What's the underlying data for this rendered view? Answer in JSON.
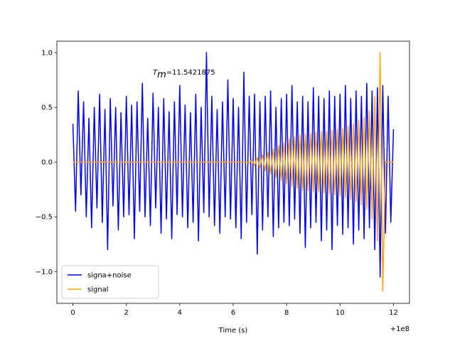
{
  "chart_data": {
    "type": "line",
    "annotation": [
      "T",
      "m",
      "=11.5421875"
    ],
    "x_label": "Time (s)",
    "x_offset_label": "+1e8",
    "xlim": [
      -0.6,
      12.6
    ],
    "ylim": [
      -1.29,
      1.104
    ],
    "xticks": [
      0,
      2,
      4,
      6,
      8,
      10,
      12
    ],
    "yticks": [
      {
        "value": -1.0,
        "label": "−1.0"
      },
      {
        "value": -0.5,
        "label": "−0.5"
      },
      {
        "value": 0.0,
        "label": "0.0"
      },
      {
        "value": 0.5,
        "label": "0.5"
      },
      {
        "value": 1.0,
        "label": "1.0"
      }
    ],
    "legend": "lower left",
    "series": [
      {
        "name": "signa+noise",
        "color": "#0000ff",
        "x": [
          0,
          0.1,
          0.2,
          0.3,
          0.4,
          0.5,
          0.6,
          0.7,
          0.8,
          0.9,
          1,
          1.1,
          1.2,
          1.3,
          1.4,
          1.5,
          1.6,
          1.7,
          1.8,
          1.9,
          2,
          2.1,
          2.2,
          2.3,
          2.4,
          2.5,
          2.6,
          2.7,
          2.8,
          2.9,
          3,
          3.1,
          3.2,
          3.3,
          3.4,
          3.5,
          3.6,
          3.7,
          3.8,
          3.9,
          4,
          4.1,
          4.2,
          4.3,
          4.4,
          4.5,
          4.6,
          4.7,
          4.8,
          4.9,
          5,
          5.1,
          5.2,
          5.3,
          5.4,
          5.5,
          5.6,
          5.7,
          5.8,
          5.9,
          6,
          6.1,
          6.2,
          6.3,
          6.4,
          6.5,
          6.6,
          6.7,
          6.8,
          6.9,
          7,
          7.1,
          7.2,
          7.3,
          7.4,
          7.5,
          7.6,
          7.7,
          7.8,
          7.9,
          8,
          8.1,
          8.2,
          8.3,
          8.4,
          8.5,
          8.6,
          8.7,
          8.8,
          8.9,
          9,
          9.1,
          9.2,
          9.3,
          9.4,
          9.5,
          9.6,
          9.7,
          9.8,
          9.9,
          10,
          10.1,
          10.2,
          10.3,
          10.4,
          10.5,
          10.6,
          10.7,
          10.8,
          10.9,
          11,
          11.1,
          11.2,
          11.3,
          11.4,
          11.5,
          11.6,
          11.7,
          11.8,
          11.9,
          12
        ],
        "values": [
          0.35,
          -0.45,
          0.65,
          -0.3,
          0.55,
          -0.5,
          0.4,
          -0.6,
          0.5,
          -0.42,
          0.62,
          -0.55,
          0.48,
          -0.8,
          0.58,
          -0.4,
          0.5,
          -0.62,
          0.45,
          -0.5,
          0.6,
          -0.48,
          0.52,
          -0.7,
          0.55,
          -0.45,
          0.72,
          -0.5,
          0.4,
          -0.58,
          0.63,
          -0.42,
          0.5,
          -0.65,
          0.58,
          -0.52,
          0.46,
          -0.7,
          0.55,
          -0.48,
          0.7,
          -0.5,
          0.52,
          -0.6,
          0.45,
          -0.55,
          0.62,
          -0.72,
          0.5,
          -0.46,
          1.0,
          -0.5,
          0.6,
          -0.58,
          0.48,
          -0.65,
          0.55,
          -0.5,
          0.75,
          -0.52,
          0.58,
          -0.6,
          0.5,
          -0.7,
          0.82,
          -0.55,
          0.6,
          -0.48,
          0.62,
          -0.84,
          0.55,
          -0.62,
          0.6,
          -0.5,
          0.65,
          -0.68,
          0.5,
          -0.6,
          0.58,
          -0.55,
          0.62,
          -0.58,
          0.7,
          -0.52,
          0.55,
          -0.65,
          0.6,
          -0.78,
          0.55,
          -0.6,
          0.68,
          -0.55,
          0.6,
          -0.72,
          0.58,
          -0.62,
          0.65,
          -0.8,
          0.6,
          -0.58,
          0.62,
          -0.66,
          0.7,
          -0.6,
          0.58,
          -0.75,
          0.65,
          -0.62,
          0.6,
          -0.7,
          0.72,
          -0.6,
          0.65,
          -0.8,
          0.68,
          -1.05,
          0.7,
          -0.65,
          0.6,
          -0.55,
          0.3
        ]
      },
      {
        "name": "signal",
        "color": "#ffa500",
        "x": [
          0,
          6.5,
          6.6,
          6.7,
          6.8,
          6.9,
          7,
          7.1,
          7.2,
          7.3,
          7.4,
          7.5,
          7.6,
          7.7,
          7.8,
          7.9,
          8,
          8.1,
          8.2,
          8.3,
          8.4,
          8.5,
          8.6,
          8.7,
          8.8,
          8.9,
          9,
          9.1,
          9.2,
          9.3,
          9.4,
          9.5,
          9.6,
          9.7,
          9.8,
          9.9,
          10,
          10.1,
          10.2,
          10.3,
          10.4,
          10.5,
          10.6,
          10.7,
          10.8,
          10.9,
          11,
          11.1,
          11.2,
          11.3,
          11.4,
          11.5,
          11.6,
          11.7,
          12
        ],
        "values": [
          0,
          0,
          -0.01,
          0.02,
          -0.03,
          0.04,
          -0.05,
          0.07,
          -0.08,
          0.09,
          -0.11,
          0.12,
          -0.14,
          0.15,
          -0.17,
          0.18,
          -0.2,
          0.21,
          -0.22,
          0.23,
          -0.24,
          0.25,
          -0.26,
          0.26,
          -0.26,
          0.26,
          -0.27,
          0.27,
          -0.27,
          0.28,
          -0.28,
          0.28,
          -0.29,
          0.29,
          -0.3,
          0.3,
          -0.31,
          0.31,
          -0.32,
          0.33,
          -0.34,
          0.35,
          -0.36,
          0.38,
          -0.39,
          0.41,
          -0.43,
          0.47,
          -0.52,
          0.6,
          -0.72,
          1.0,
          -1.18,
          0,
          0
        ]
      }
    ]
  }
}
